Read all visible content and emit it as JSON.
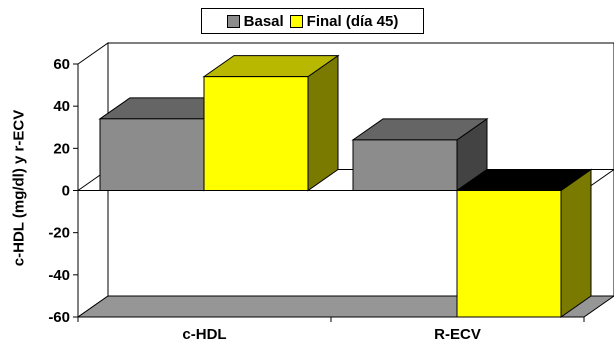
{
  "chart_data": {
    "type": "bar",
    "title": "",
    "xlabel": "",
    "ylabel": "c-HDL (mg/dl) y r-ECV",
    "categories": [
      "c-HDL",
      "R-ECV"
    ],
    "series": [
      {
        "name": "Basal",
        "values": [
          34,
          24
        ],
        "color": "#8c8c8c"
      },
      {
        "name": "Final (día 45)",
        "values": [
          54,
          -60
        ],
        "color": "#ffff00"
      }
    ],
    "ylim": [
      -60,
      60
    ],
    "yticks": [
      "-60",
      "-40",
      "-20",
      "0",
      "20",
      "40",
      "60"
    ],
    "bar_style": "3d",
    "grid": false,
    "legend_position": "top-center"
  }
}
